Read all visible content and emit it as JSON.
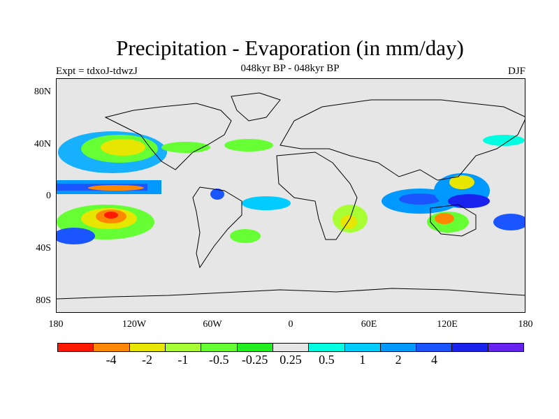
{
  "header": {
    "title": "Precipitation - Evaporation (in mm/day)",
    "subtitle": "048kyr BP - 048kyr BP",
    "experiment": "Expt = tdxoJ-tdwzJ",
    "season": "DJF"
  },
  "map": {
    "background_color": "#e6e6e6",
    "lat_ticks": [
      "80N",
      "40N",
      "0",
      "40S",
      "80S"
    ],
    "lon_ticks": [
      "180",
      "120W",
      "60W",
      "0",
      "60E",
      "120E",
      "180"
    ],
    "anomaly_regions": [
      {
        "name": "n-pacific-wet",
        "level": "0.5",
        "color": "#00aaff"
      },
      {
        "name": "n-pacific-dry",
        "level": "-1",
        "color": "#ccff44"
      },
      {
        "name": "equatorial-pacific-wet",
        "level": "1",
        "color": "#1144ff"
      },
      {
        "name": "s-pacific-dry",
        "level": "-4",
        "color": "#ff6600"
      },
      {
        "name": "maritime-continent-wet",
        "level": "2",
        "color": "#1111ee"
      },
      {
        "name": "australia-dry",
        "level": "-2",
        "color": "#ffaa00"
      },
      {
        "name": "indian-ocean-wet",
        "level": "1",
        "color": "#0066ff"
      },
      {
        "name": "southern-africa-dry",
        "level": "-1",
        "color": "#aaff22"
      },
      {
        "name": "atlantic-dry",
        "level": "-0.5",
        "color": "#44ff22"
      }
    ]
  },
  "colorbar": {
    "colors": [
      "#ff1a00",
      "#ff8800",
      "#e6e600",
      "#a8ff33",
      "#66ff33",
      "#22ee22",
      "#e6e6e6",
      "#00ffe0",
      "#00ccff",
      "#0099ff",
      "#1a55ff",
      "#1a22ee",
      "#6622ee"
    ],
    "labels": [
      "-4",
      "-2",
      "-1",
      "-0.5",
      "-0.25",
      "0.25",
      "0.5",
      "1",
      "2",
      "4"
    ]
  }
}
